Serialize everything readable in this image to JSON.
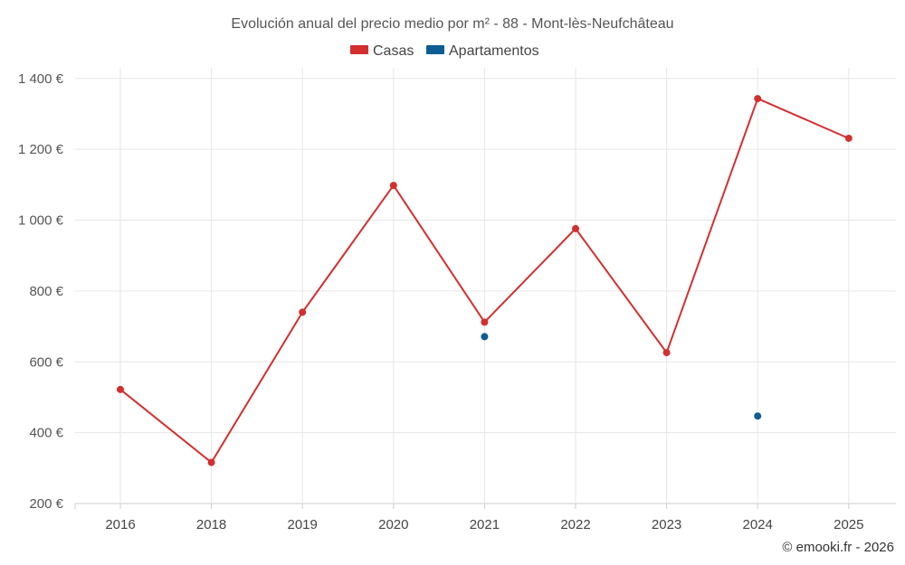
{
  "chart_data": {
    "type": "line",
    "title": "Evolución anual del precio medio por m² - 88 - Mont-lès-Neufchâteau",
    "categories": [
      "2016",
      "2018",
      "2019",
      "2020",
      "2021",
      "2022",
      "2023",
      "2024",
      "2025"
    ],
    "y_ticks": [
      200,
      400,
      600,
      800,
      1000,
      1200,
      1400
    ],
    "y_tick_labels": [
      "200 €",
      "400 €",
      "600 €",
      "800 €",
      "1 000 €",
      "1 200 €",
      "1 400 €"
    ],
    "ylim": [
      200,
      1430
    ],
    "grid": true,
    "legend_position": "top-center",
    "series": [
      {
        "name": "Casas",
        "color": "#d32f2f",
        "values": [
          522,
          316,
          740,
          1098,
          712,
          976,
          626,
          1343,
          1231
        ]
      },
      {
        "name": "Apartamentos",
        "color": "#0b5d94",
        "values": [
          null,
          null,
          null,
          null,
          671,
          null,
          null,
          447,
          null
        ]
      }
    ]
  },
  "credit": "© emooki.fr - 2026"
}
